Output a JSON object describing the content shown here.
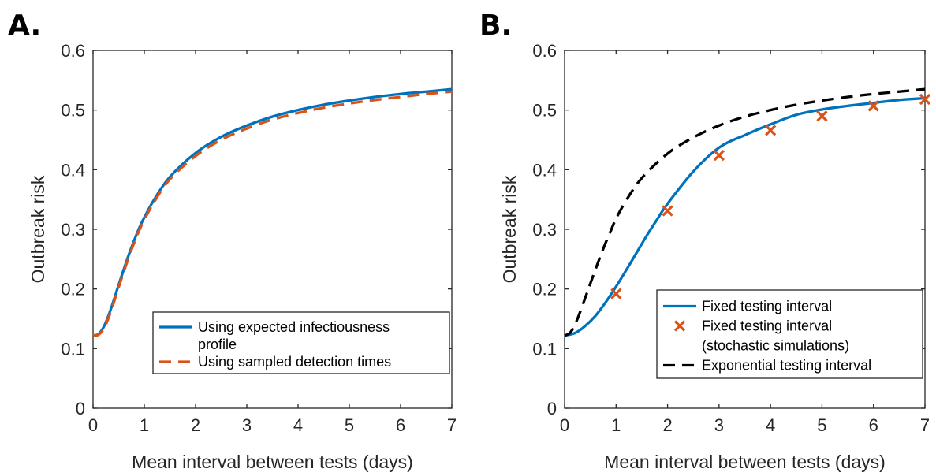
{
  "colors": {
    "blue": "#0072BD",
    "orange": "#D95319",
    "black": "#000000",
    "axis": "#262626"
  },
  "chart_data": [
    {
      "panel_label": "A.",
      "type": "line",
      "xlabel": "Mean interval between tests (days)",
      "ylabel": "Outbreak risk",
      "xlim": [
        0,
        7
      ],
      "ylim": [
        0,
        0.6
      ],
      "xticks": [
        "0",
        "1",
        "2",
        "3",
        "4",
        "5",
        "6",
        "7"
      ],
      "yticks": [
        "0",
        "0.1",
        "0.2",
        "0.3",
        "0.4",
        "0.5",
        "0.6"
      ],
      "grid": false,
      "legend_position": "bottom-right",
      "series": [
        {
          "name": "Using expected infectiousness profile",
          "legend_lines": [
            "Using expected infectiousness",
            "profile"
          ],
          "style": "solid",
          "color": "blue",
          "x": [
            0,
            0.1,
            0.2,
            0.3,
            0.4,
            0.5,
            0.6,
            0.7,
            0.8,
            0.9,
            1.0,
            1.2,
            1.5,
            2.0,
            2.5,
            3.0,
            3.5,
            4.0,
            4.5,
            5.0,
            5.5,
            6.0,
            6.5,
            7.0
          ],
          "y": [
            0.122,
            0.124,
            0.135,
            0.155,
            0.18,
            0.207,
            0.233,
            0.258,
            0.281,
            0.302,
            0.32,
            0.351,
            0.388,
            0.428,
            0.455,
            0.474,
            0.489,
            0.5,
            0.509,
            0.516,
            0.522,
            0.527,
            0.531,
            0.535
          ]
        },
        {
          "name": "Using sampled detection times",
          "legend_lines": [
            "Using sampled detection times"
          ],
          "style": "dashed",
          "color": "orange",
          "x": [
            0,
            0.1,
            0.2,
            0.3,
            0.4,
            0.5,
            0.6,
            0.7,
            0.8,
            0.9,
            1.0,
            1.2,
            1.5,
            2.0,
            2.5,
            3.0,
            3.5,
            4.0,
            4.5,
            5.0,
            5.5,
            6.0,
            6.5,
            7.0
          ],
          "y": [
            0.122,
            0.123,
            0.132,
            0.151,
            0.176,
            0.203,
            0.229,
            0.254,
            0.277,
            0.298,
            0.316,
            0.347,
            0.384,
            0.423,
            0.45,
            0.469,
            0.484,
            0.495,
            0.504,
            0.511,
            0.517,
            0.522,
            0.527,
            0.531
          ]
        }
      ]
    },
    {
      "panel_label": "B.",
      "type": "line",
      "xlabel": "Mean interval between tests (days)",
      "ylabel": "Outbreak risk",
      "xlim": [
        0,
        7
      ],
      "ylim": [
        0,
        0.6
      ],
      "xticks": [
        "0",
        "1",
        "2",
        "3",
        "4",
        "5",
        "6",
        "7"
      ],
      "yticks": [
        "0",
        "0.1",
        "0.2",
        "0.3",
        "0.4",
        "0.5",
        "0.6"
      ],
      "grid": false,
      "legend_position": "bottom-right",
      "series": [
        {
          "name": "Fixed testing interval",
          "legend_lines": [
            "Fixed testing interval"
          ],
          "style": "solid",
          "color": "blue",
          "x": [
            0,
            0.2,
            0.4,
            0.6,
            0.8,
            1.0,
            1.2,
            1.4,
            1.6,
            1.8,
            2.0,
            2.5,
            3.0,
            3.5,
            4.0,
            4.5,
            5.0,
            5.5,
            6.0,
            6.5,
            7.0
          ],
          "y": [
            0.122,
            0.126,
            0.138,
            0.155,
            0.178,
            0.204,
            0.232,
            0.261,
            0.29,
            0.317,
            0.343,
            0.397,
            0.437,
            0.458,
            0.476,
            0.492,
            0.501,
            0.507,
            0.512,
            0.517,
            0.52
          ]
        },
        {
          "name": "Fixed testing interval (stochastic simulations)",
          "legend_lines": [
            "Fixed testing interval",
            "(stochastic simulations)"
          ],
          "style": "markers",
          "color": "orange",
          "x": [
            1,
            2,
            3,
            4,
            5,
            6,
            7
          ],
          "y": [
            0.192,
            0.331,
            0.424,
            0.466,
            0.49,
            0.507,
            0.518
          ]
        },
        {
          "name": "Exponential testing interval",
          "legend_lines": [
            "Exponential testing interval"
          ],
          "style": "dashed",
          "color": "black",
          "x": [
            0,
            0.1,
            0.2,
            0.3,
            0.4,
            0.5,
            0.6,
            0.7,
            0.8,
            0.9,
            1.0,
            1.2,
            1.5,
            2.0,
            2.5,
            3.0,
            3.5,
            4.0,
            4.5,
            5.0,
            5.5,
            6.0,
            6.5,
            7.0
          ],
          "y": [
            0.122,
            0.126,
            0.14,
            0.161,
            0.185,
            0.209,
            0.233,
            0.256,
            0.278,
            0.298,
            0.318,
            0.349,
            0.386,
            0.427,
            0.454,
            0.474,
            0.489,
            0.5,
            0.509,
            0.516,
            0.522,
            0.527,
            0.531,
            0.535
          ]
        }
      ]
    }
  ]
}
